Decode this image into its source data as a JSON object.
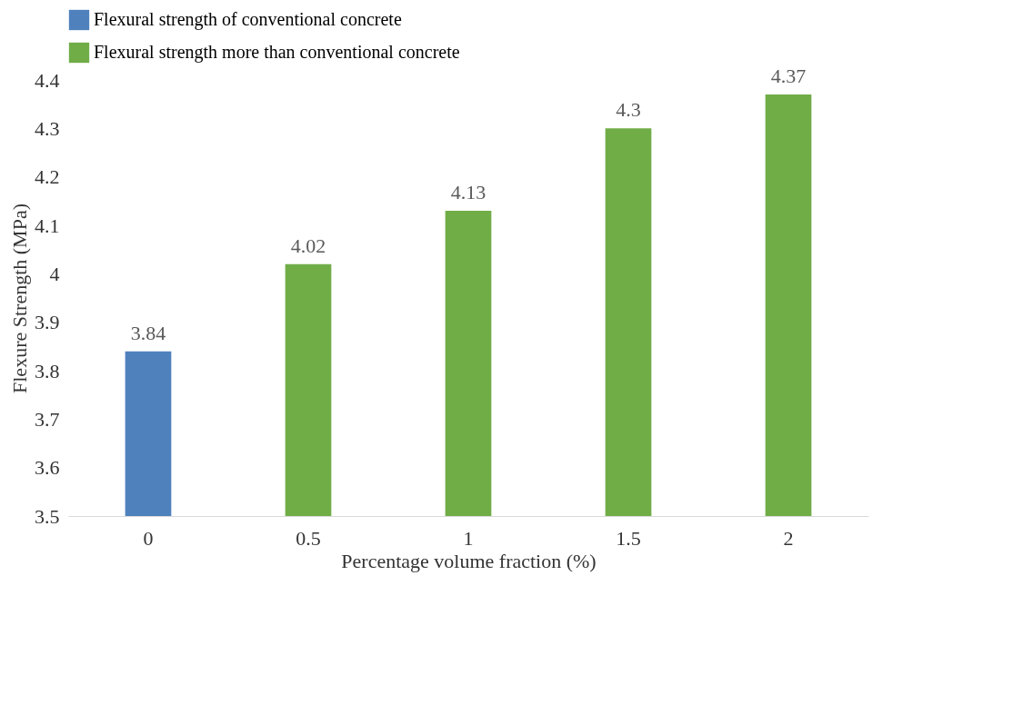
{
  "chart_data": {
    "type": "bar",
    "xlabel": "Percentage volume fraction (%)",
    "ylabel": "Flexure Strength (MPa)",
    "categories": [
      "0",
      "0.5",
      "1",
      "1.5",
      "2"
    ],
    "series": [
      {
        "name": "Flexural strength of conventional concrete",
        "color": "#4f81bd",
        "values": [
          3.84,
          null,
          null,
          null,
          null
        ]
      },
      {
        "name": "Flexural strength more than conventional concrete",
        "color": "#70ad47",
        "values": [
          null,
          4.02,
          4.13,
          4.3,
          4.37
        ]
      }
    ],
    "ylim": [
      3.5,
      4.4
    ],
    "yticks": [
      3.5,
      3.6,
      3.7,
      3.8,
      3.9,
      4,
      4.1,
      4.2,
      4.3,
      4.4
    ],
    "data_labels": true,
    "legend": "top",
    "grid": false
  }
}
